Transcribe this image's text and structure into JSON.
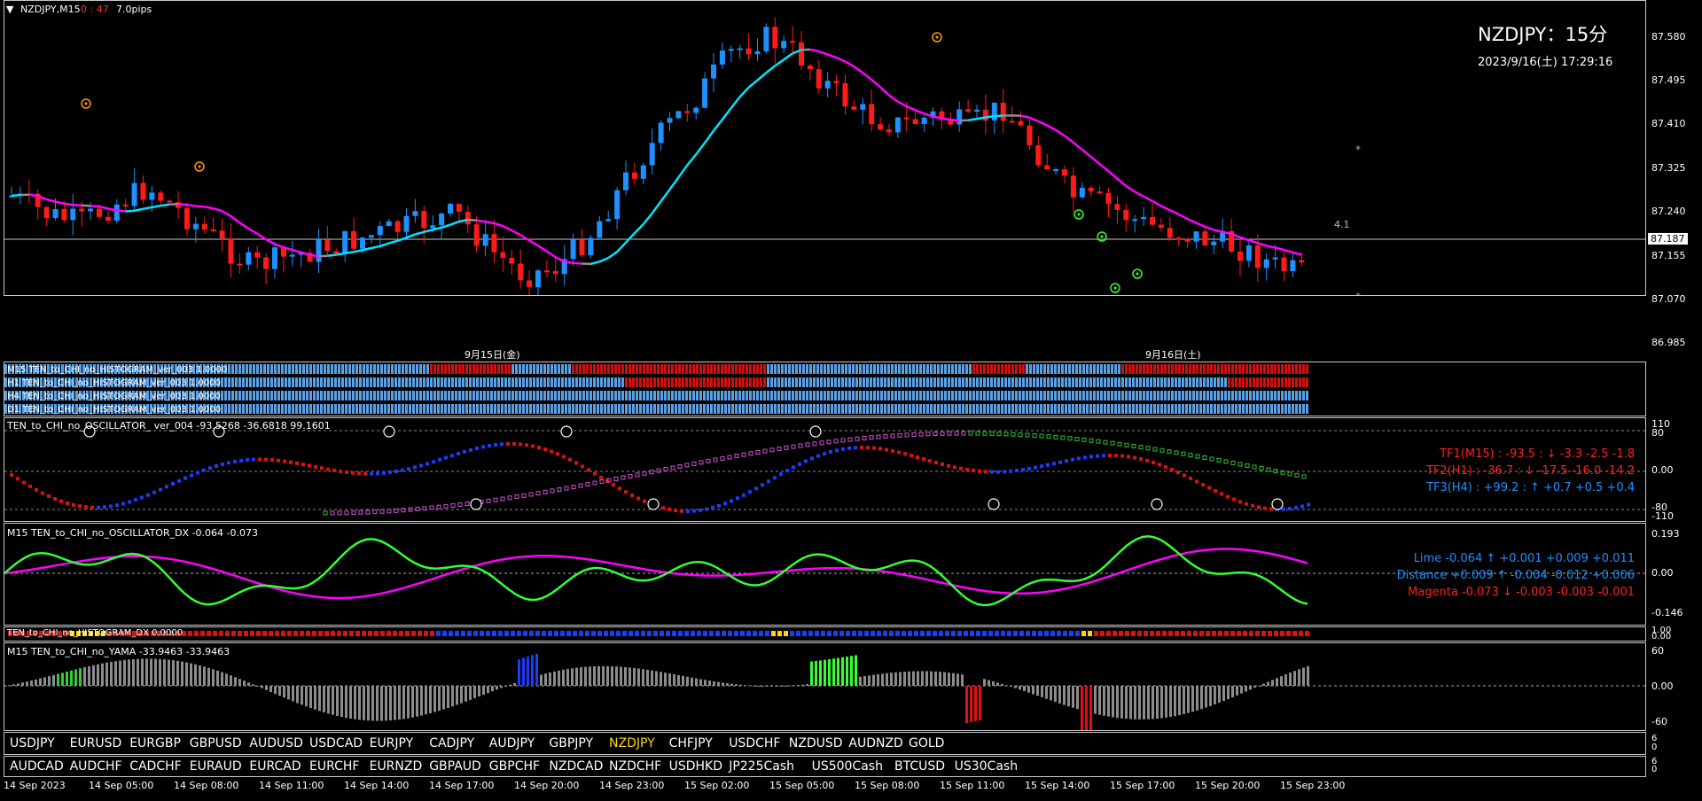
{
  "header": {
    "symbol_tf": "NZDJPY,M15",
    "timer": "0 : 47",
    "spread": "7.0pips"
  },
  "big_title": "NZDJPY：15分",
  "datetime": "2023/9/16(土) 17:29:16",
  "price_axis": [
    "87.580",
    "87.495",
    "87.410",
    "87.325",
    "87.240",
    "87.155",
    "87.070",
    "86.985"
  ],
  "current_price": "87.187",
  "marker_value": "4.1",
  "date_labels": [
    "9月15日(金)",
    "9月16日(土)"
  ],
  "histogram_rows": [
    "M15 TEN_to_CHI_no_HISTOGRAM_ver_003 1.0000",
    "H1 TEN_to_CHI_no_HISTOGRAM_ver_003 1.0000",
    "H4 TEN_to_CHI_no_HISTOGRAM_ver_003 1.0000",
    "D1 TEN_to_CHI_no_HISTOGRAM_ver_003 1.0000"
  ],
  "oscillator": {
    "title": "TEN_to_CHI_no_OSCILLATOR_ ver_004 -93.5268 -36.6818 99.1601",
    "axis": [
      "110",
      "80",
      "0.00",
      "-80",
      "-110"
    ],
    "tf1": "TF1(M15) : -93.5 : ↓ -3.3 -2.5 -1.8",
    "tf2": "TF2(H1) : -36.7 : ↓ -17.5 -16.0 -14.2",
    "tf3": "TF3(H4) : +99.2 : ↑ +0.7 +0.5 +0.4"
  },
  "osc_dx": {
    "title": "M15 TEN_to_CHI_no_OSCILLATOR_DX -0.064 -0.073",
    "axis": [
      "0.193",
      "0.00",
      "-0.146"
    ],
    "lime": "Lime -0.064 ↑ +0.001 +0.009 +0.011",
    "distance": "Distance +0.009 ↑ -0.004 -0.012 +0.006",
    "magenta": "Magenta -0.073 ↓ -0.003 -0.003 -0.001"
  },
  "hist_dx": {
    "title": "TEN_to_CHI_no_HISTOGRAM_DX 0.0000",
    "axis": [
      "1.00",
      "0.00"
    ]
  },
  "yama": {
    "title": "M15 TEN_to_CHI_no_YAMA -33.9463 -33.9463",
    "axis": [
      "60",
      "0.00",
      "-60"
    ]
  },
  "symbols_row1": [
    "USDJPY",
    "EURUSD",
    "EURGBP",
    "GBPUSD",
    "AUDUSD",
    "USDCAD",
    "EURJPY",
    "CADJPY",
    "AUDJPY",
    "GBPJPY",
    "NZDJPY",
    "CHFJPY",
    "USDCHF",
    "NZDUSD",
    "AUDNZD",
    "GOLD"
  ],
  "symbols_row2": [
    "AUDCAD",
    "AUDCHF",
    "CADCHF",
    "EURAUD",
    "EURCAD",
    "EURCHF",
    "EURNZD",
    "GBPAUD",
    "GBPCHF",
    "NZDCAD",
    "NZDCHF",
    "USDHKD",
    "JP225Cash",
    "US500Cash",
    "BTCUSD",
    "US30Cash"
  ],
  "active_symbol": "NZDJPY",
  "row_axis": [
    "6",
    "0"
  ],
  "time_axis": [
    "14 Sep 2023",
    "14 Sep 05:00",
    "14 Sep 08:00",
    "14 Sep 11:00",
    "14 Sep 14:00",
    "14 Sep 17:00",
    "14 Sep 20:00",
    "14 Sep 23:00",
    "15 Sep 02:00",
    "15 Sep 05:00",
    "15 Sep 08:00",
    "15 Sep 11:00",
    "15 Sep 14:00",
    "15 Sep 17:00",
    "15 Sep 20:00",
    "15 Sep 23:00"
  ],
  "colors": {
    "bull": "#1e90ff",
    "bear": "#ff1a1a",
    "ma_up": "#00e5ff",
    "ma_down": "#ff00ff",
    "ma_flat": "#909090",
    "lime": "#33ff33",
    "active": "#ffd700"
  }
}
